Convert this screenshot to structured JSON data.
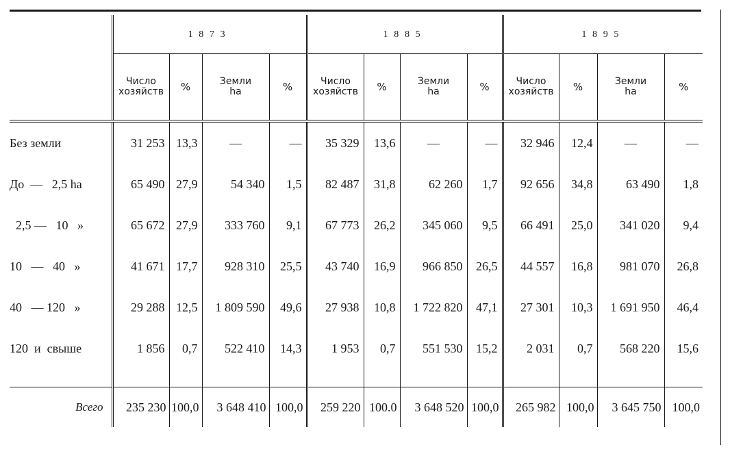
{
  "years": [
    "1873",
    "1885",
    "1895"
  ],
  "subheaders": {
    "households": [
      "Число",
      "хозяйств"
    ],
    "percent": "%",
    "land": [
      "Земли",
      "ha"
    ]
  },
  "rows": [
    {
      "label": "Без земли",
      "cells": [
        "31 253",
        "13,3",
        "—",
        "—",
        "35 329",
        "13,6",
        "—",
        "—",
        "32 946",
        "12,4",
        "—",
        "—"
      ]
    },
    {
      "label": "До  —   2,5 ha",
      "cells": [
        "65 490",
        "27,9",
        "54 340",
        "1,5",
        "82 487",
        "31,8",
        "62 260",
        "1,7",
        "92 656",
        "34,8",
        "63 490",
        "1,8"
      ]
    },
    {
      "label": "  2,5 —   10   »",
      "cells": [
        "65 672",
        "27,9",
        "333 760",
        "9,1",
        "67 773",
        "26,2",
        "345 060",
        "9,5",
        "66 491",
        "25,0",
        "341 020",
        "9,4"
      ]
    },
    {
      "label": "10   —   40   »",
      "cells": [
        "41 671",
        "17,7",
        "928 310",
        "25,5",
        "43 740",
        "16,9",
        "966 850",
        "26,5",
        "44 557",
        "16,8",
        "981 070",
        "26,8"
      ]
    },
    {
      "label": "40   — 120   »",
      "cells": [
        "29 288",
        "12,5",
        "1 809 590",
        "49,6",
        "27 938",
        "10,8",
        "1 722 820",
        "47,1",
        "27 301",
        "10,3",
        "1 691 950",
        "46,4"
      ]
    },
    {
      "label": "120  и  свыше",
      "cells": [
        "1 856",
        "0,7",
        "522 410",
        "14,3",
        "1 953",
        "0,7",
        "551 530",
        "15,2",
        "2 031",
        "0,7",
        "568 220",
        "15,6"
      ]
    }
  ],
  "total": {
    "label": "Всего",
    "cells": [
      "235 230",
      "100,0",
      "3 648 410",
      "100,0",
      "259 220",
      "100.0",
      "3 648 520",
      "100,0",
      "265 982",
      "100,0",
      "3 645 750",
      "100,0"
    ]
  }
}
